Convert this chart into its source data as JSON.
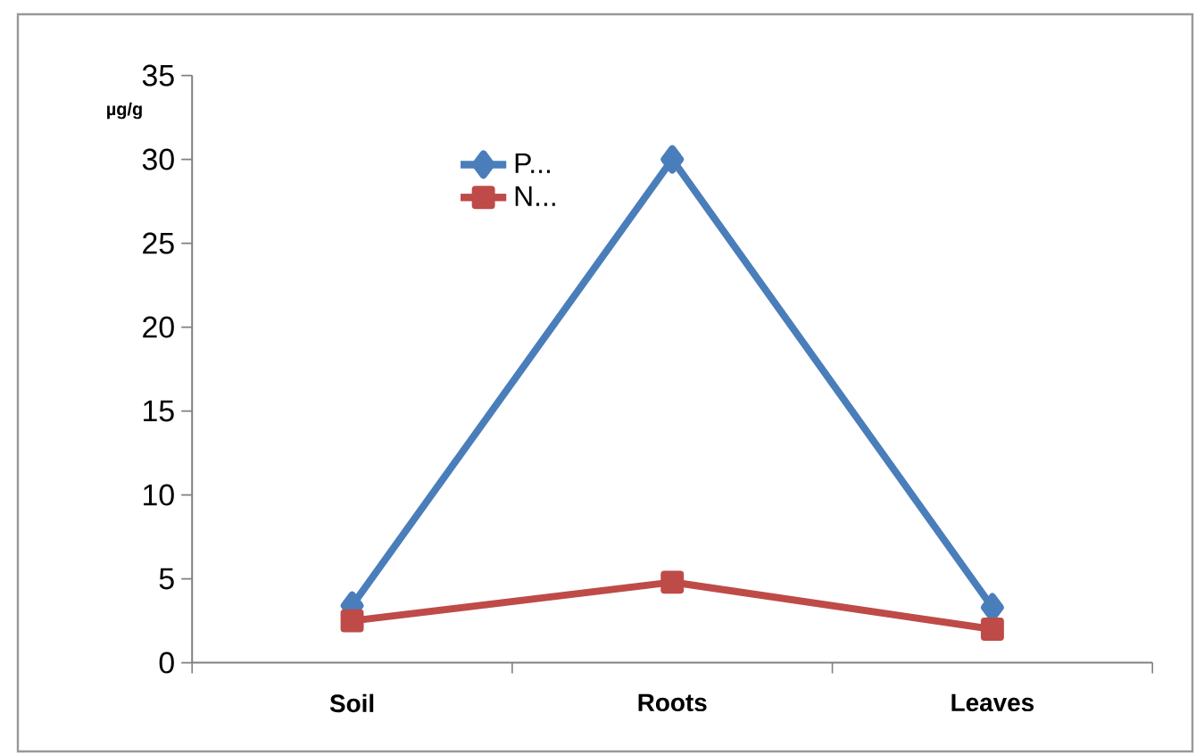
{
  "chart_data": {
    "type": "line",
    "ylabel": "µg/g",
    "categories": [
      "Soil",
      "Roots",
      "Leaves"
    ],
    "series": [
      {
        "name": "P...",
        "color": "#4a7ebb",
        "marker": "diamond",
        "values": [
          3.4,
          30,
          3.3
        ]
      },
      {
        "name": "N...",
        "color": "#be4b48",
        "marker": "square",
        "values": [
          2.5,
          4.8,
          2.0
        ]
      }
    ],
    "ylim": [
      0,
      35
    ],
    "yticks": [
      0,
      5,
      10,
      15,
      20,
      25,
      30,
      35
    ],
    "grid": false,
    "legend": "top"
  }
}
